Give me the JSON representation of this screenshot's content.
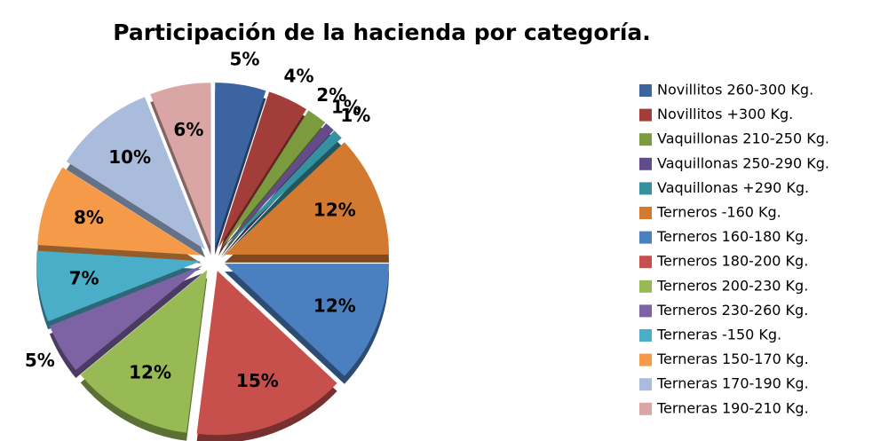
{
  "chart_data": {
    "type": "pie",
    "title": "Participación de la hacienda  por categoría.",
    "categories": [
      "Novillitos 260-300 Kg.",
      "Novillitos +300 Kg.",
      "Vaquillonas 210-250 Kg.",
      "Vaquillonas 250-290 Kg.",
      "Vaquillonas +290 Kg.",
      "Terneros -160 Kg.",
      "Terneros 160-180 Kg.",
      "Terneros 180-200 Kg.",
      "Terneros 200-230 Kg.",
      "Terneros 230-260 Kg.",
      "Terneras -150 Kg.",
      "Terneras 150-170 Kg.",
      "Terneras 170-190 Kg.",
      "Terneras 190-210 Kg."
    ],
    "values": [
      5,
      4,
      2,
      1,
      1,
      12,
      12,
      15,
      12,
      5,
      7,
      8,
      10,
      6
    ],
    "value_labels": [
      "5%",
      "4%",
      "2%",
      "1%",
      "1%",
      "12%",
      "12%",
      "15%",
      "12%",
      "5%",
      "7%",
      "8%",
      "10%",
      "6%"
    ],
    "colors": [
      "#3b64a0",
      "#a33d3a",
      "#7c9a3e",
      "#644c8a",
      "#35909f",
      "#d47a30",
      "#4a7fc0",
      "#c8504c",
      "#98ba55",
      "#7d63a3",
      "#4aaec8",
      "#f59a48",
      "#a9bcdc",
      "#d9a6a5"
    ],
    "legend": "right"
  }
}
